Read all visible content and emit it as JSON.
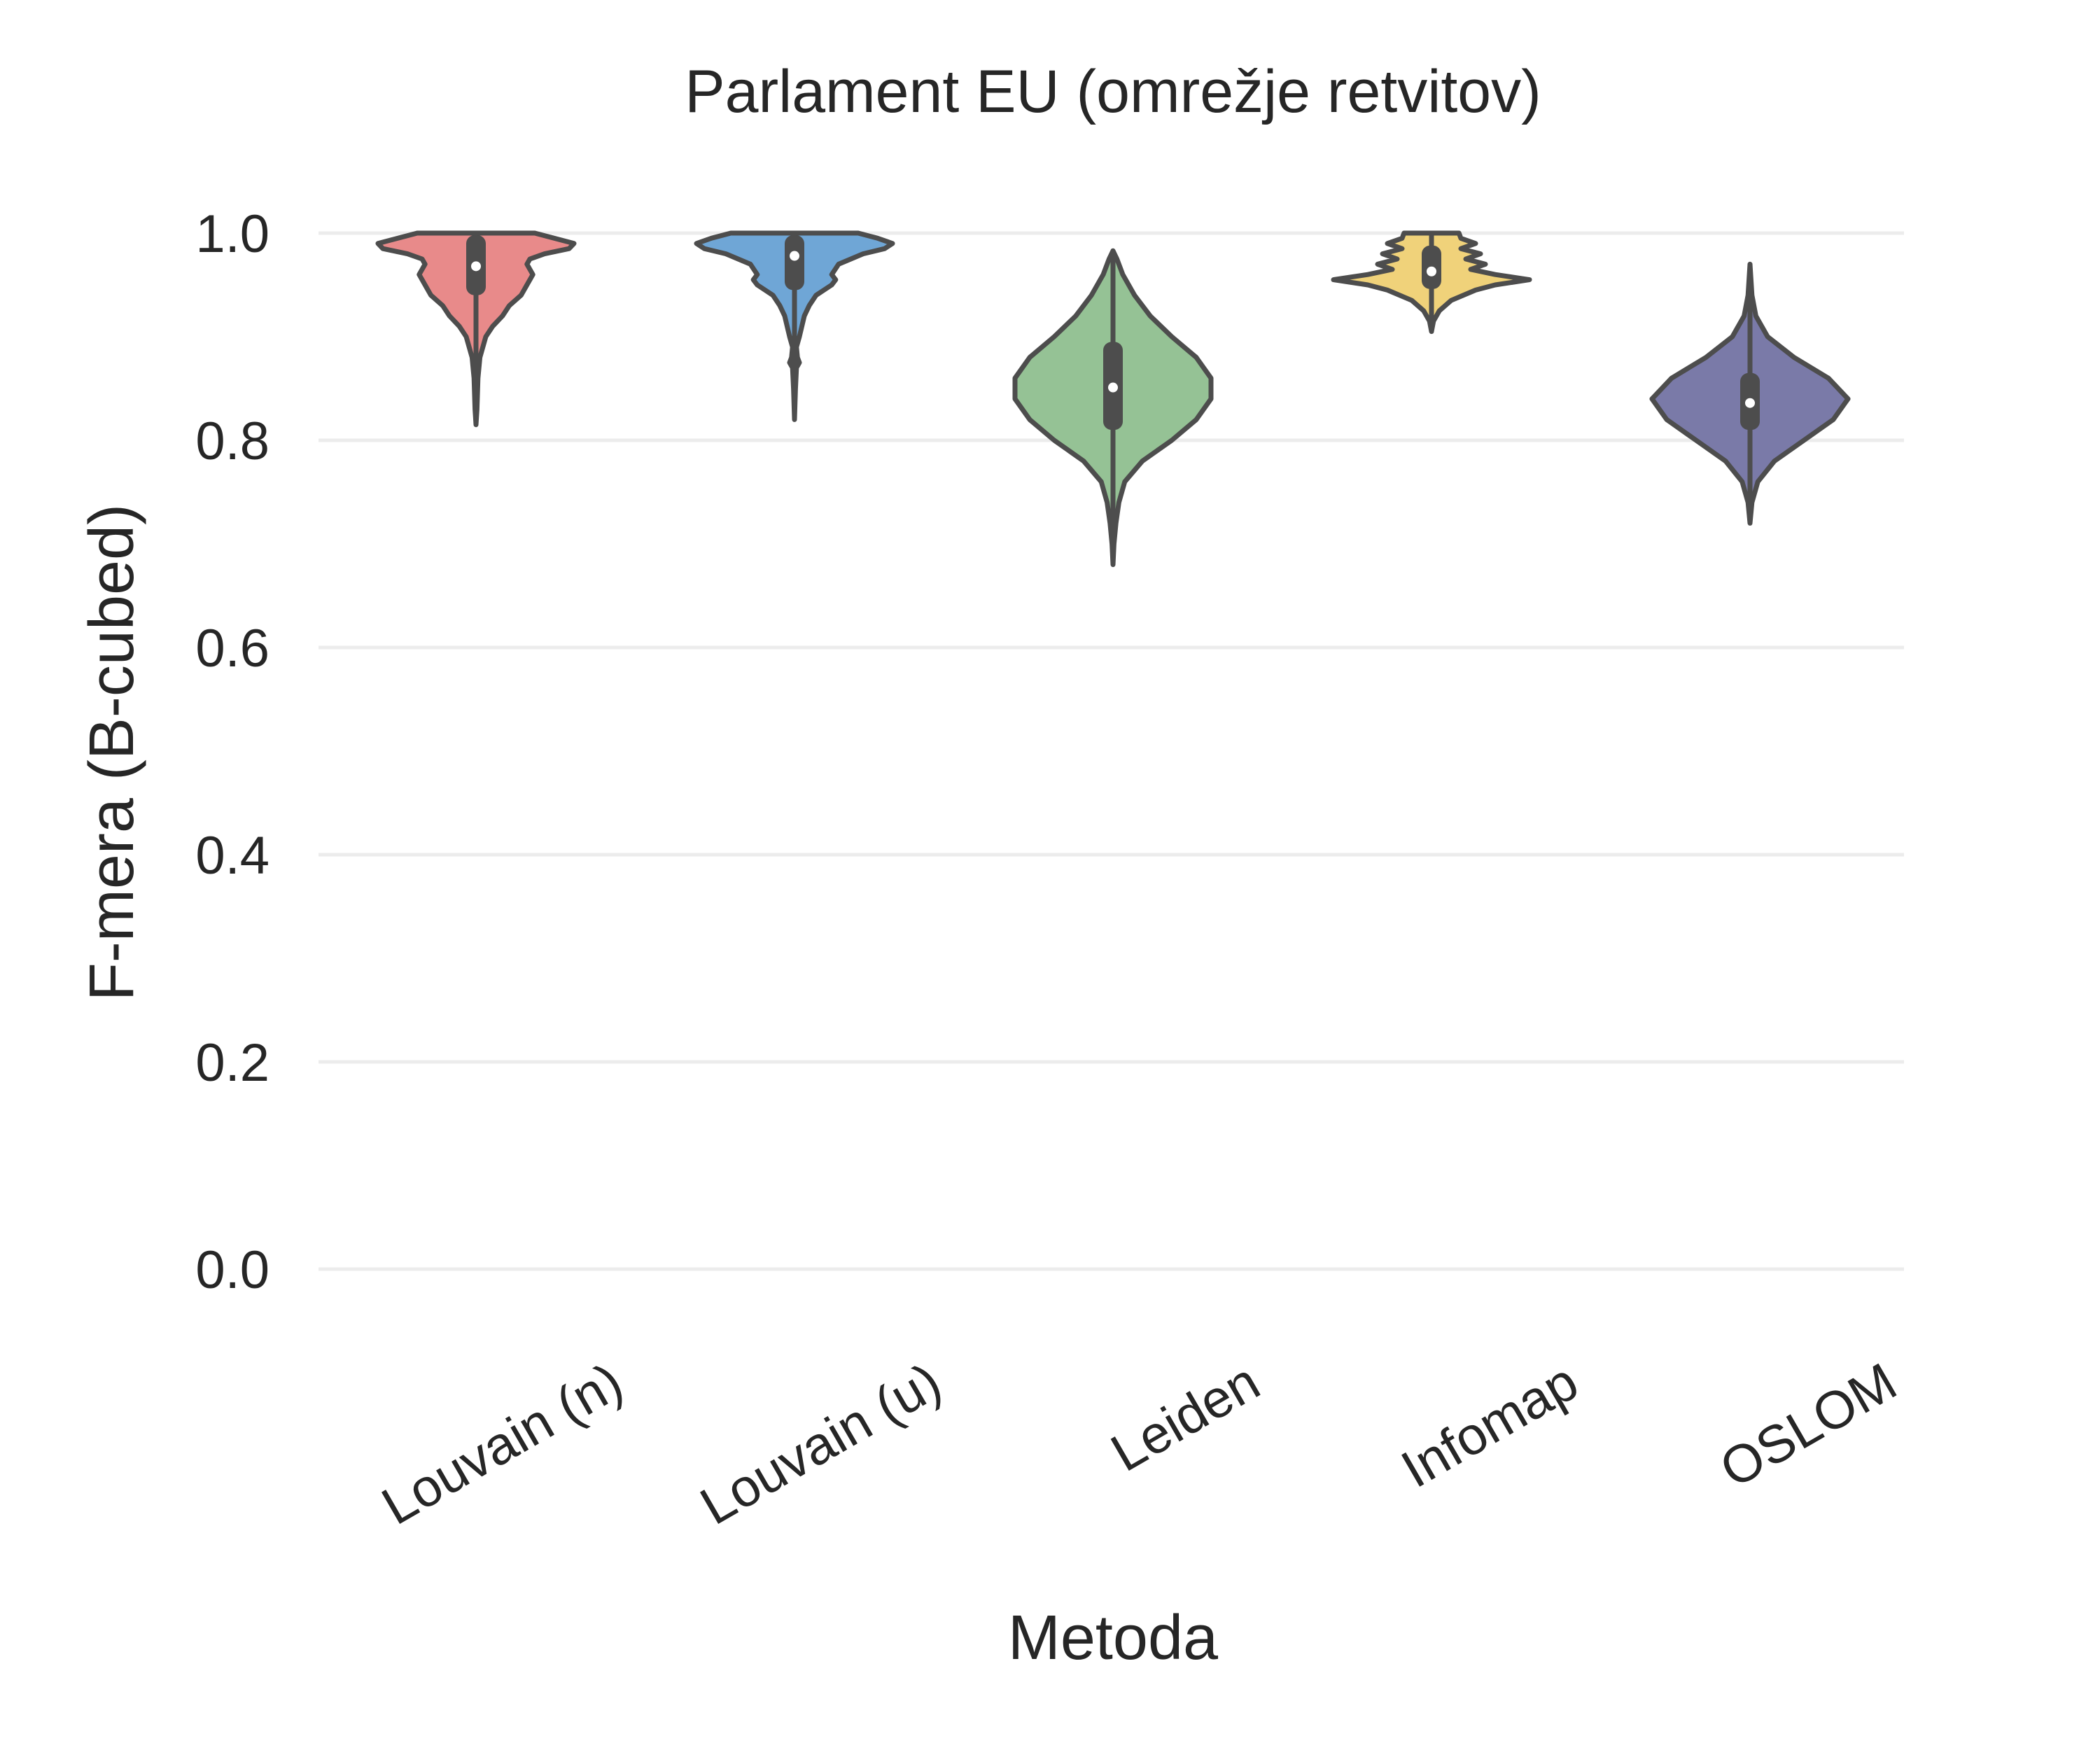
{
  "chart_data": {
    "type": "violin",
    "title": "Parlament EU  (omrežje retvitov)",
    "xlabel": "Metoda",
    "ylabel": "F-mera (B-cubed)",
    "ylim": [
      0.0,
      1.0
    ],
    "yticks": [
      0.0,
      0.2,
      0.4,
      0.6,
      0.8,
      1.0
    ],
    "ytick_labels": [
      "0.0",
      "0.2",
      "0.4",
      "0.6",
      "0.8",
      "1.0"
    ],
    "grid": "horizontal",
    "categories": [
      "Louvain (n)",
      "Louvain (u)",
      "Leiden",
      "Infomap",
      "OSLOM"
    ],
    "series": [
      {
        "category": "Louvain (n)",
        "color": "#e88a8a",
        "min": 0.815,
        "max": 1.0,
        "q1": 0.94,
        "median": 0.968,
        "q3": 0.998,
        "density": [
          [
            0.815,
            0.0
          ],
          [
            0.83,
            0.01
          ],
          [
            0.86,
            0.02
          ],
          [
            0.88,
            0.04
          ],
          [
            0.9,
            0.1
          ],
          [
            0.91,
            0.17
          ],
          [
            0.92,
            0.27
          ],
          [
            0.93,
            0.34
          ],
          [
            0.94,
            0.46
          ],
          [
            0.95,
            0.52
          ],
          [
            0.96,
            0.58
          ],
          [
            0.965,
            0.55
          ],
          [
            0.97,
            0.52
          ],
          [
            0.975,
            0.55
          ],
          [
            0.98,
            0.7
          ],
          [
            0.985,
            0.95
          ],
          [
            0.99,
            1.0
          ],
          [
            0.995,
            0.8
          ],
          [
            1.0,
            0.6
          ]
        ]
      },
      {
        "category": "Louvain (u)",
        "color": "#6fa6d6",
        "min": 0.82,
        "max": 1.0,
        "q1": 0.945,
        "median": 0.978,
        "q3": 0.998,
        "density": [
          [
            0.82,
            0.0
          ],
          [
            0.85,
            0.01
          ],
          [
            0.87,
            0.02
          ],
          [
            0.875,
            0.05
          ],
          [
            0.88,
            0.03
          ],
          [
            0.89,
            0.02
          ],
          [
            0.9,
            0.05
          ],
          [
            0.92,
            0.1
          ],
          [
            0.93,
            0.15
          ],
          [
            0.94,
            0.22
          ],
          [
            0.95,
            0.38
          ],
          [
            0.955,
            0.42
          ],
          [
            0.96,
            0.38
          ],
          [
            0.97,
            0.45
          ],
          [
            0.98,
            0.7
          ],
          [
            0.985,
            0.92
          ],
          [
            0.99,
            1.0
          ],
          [
            0.995,
            0.85
          ],
          [
            1.0,
            0.65
          ]
        ]
      },
      {
        "category": "Leiden",
        "color": "#95c295",
        "min": 0.68,
        "max": 0.983,
        "q1": 0.81,
        "median": 0.851,
        "q3": 0.895,
        "density": [
          [
            0.68,
            0.0
          ],
          [
            0.7,
            0.01
          ],
          [
            0.72,
            0.03
          ],
          [
            0.74,
            0.06
          ],
          [
            0.76,
            0.12
          ],
          [
            0.78,
            0.3
          ],
          [
            0.8,
            0.6
          ],
          [
            0.82,
            0.85
          ],
          [
            0.84,
            1.0
          ],
          [
            0.86,
            1.0
          ],
          [
            0.88,
            0.85
          ],
          [
            0.9,
            0.6
          ],
          [
            0.92,
            0.38
          ],
          [
            0.94,
            0.22
          ],
          [
            0.96,
            0.1
          ],
          [
            0.975,
            0.04
          ],
          [
            0.983,
            0.0
          ]
        ]
      },
      {
        "category": "Infomap",
        "color": "#f0d27a",
        "min": 0.905,
        "max": 1.0,
        "q1": 0.946,
        "median": 0.963,
        "q3": 0.988,
        "density": [
          [
            0.905,
            0.0
          ],
          [
            0.915,
            0.02
          ],
          [
            0.925,
            0.08
          ],
          [
            0.935,
            0.2
          ],
          [
            0.945,
            0.45
          ],
          [
            0.95,
            0.65
          ],
          [
            0.955,
            1.0
          ],
          [
            0.96,
            0.65
          ],
          [
            0.965,
            0.4
          ],
          [
            0.97,
            0.55
          ],
          [
            0.975,
            0.35
          ],
          [
            0.98,
            0.5
          ],
          [
            0.985,
            0.3
          ],
          [
            0.99,
            0.45
          ],
          [
            0.995,
            0.3
          ],
          [
            1.0,
            0.28
          ]
        ]
      },
      {
        "category": "OSLOM",
        "color": "#7a7aa8",
        "min": 0.72,
        "max": 0.97,
        "q1": 0.81,
        "median": 0.836,
        "q3": 0.865,
        "density": [
          [
            0.72,
            0.0
          ],
          [
            0.74,
            0.02
          ],
          [
            0.76,
            0.08
          ],
          [
            0.78,
            0.25
          ],
          [
            0.8,
            0.55
          ],
          [
            0.82,
            0.85
          ],
          [
            0.84,
            1.0
          ],
          [
            0.86,
            0.8
          ],
          [
            0.88,
            0.45
          ],
          [
            0.9,
            0.18
          ],
          [
            0.92,
            0.06
          ],
          [
            0.94,
            0.02
          ],
          [
            0.97,
            0.0
          ]
        ]
      }
    ]
  }
}
